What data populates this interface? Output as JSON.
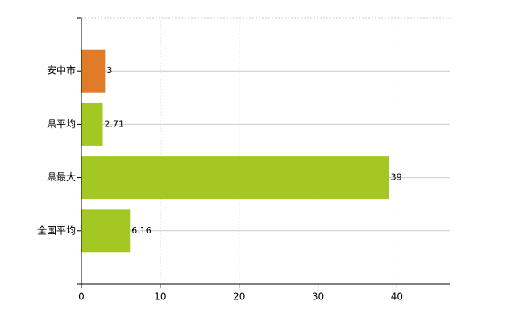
{
  "chart_data": {
    "type": "hbar",
    "categories": [
      "安中市",
      "県平均",
      "県最大",
      "全国平均"
    ],
    "values": [
      3,
      2.71,
      39,
      6.16
    ],
    "colors": [
      "#e07b28",
      "#a3c823",
      "#a3c823",
      "#a3c823"
    ],
    "xlim": [
      0,
      46.7
    ],
    "xticks": [
      0,
      10,
      20,
      30,
      40
    ],
    "grid": true
  }
}
